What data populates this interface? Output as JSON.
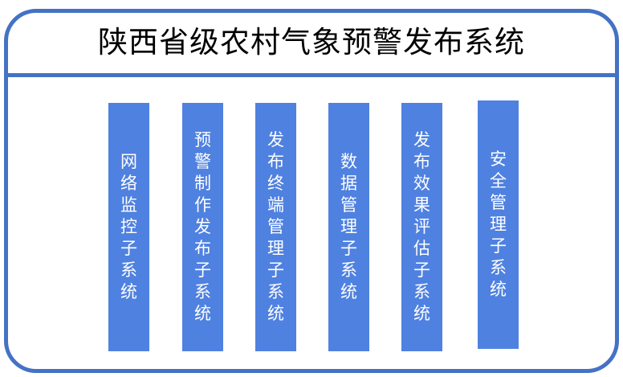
{
  "title": "陕西省级农村气象预警发布系统",
  "colors": {
    "border": "#4472c4",
    "box": "#4f81e0",
    "box_text": "#ffffff"
  },
  "modules": [
    {
      "label": "网络监控子系统"
    },
    {
      "label": "预警制作发布子系统"
    },
    {
      "label": "发布终端管理子系统"
    },
    {
      "label": "数据管理子系统"
    },
    {
      "label": "发布效果评估子系统"
    },
    {
      "label": "安全管理子系统"
    }
  ]
}
